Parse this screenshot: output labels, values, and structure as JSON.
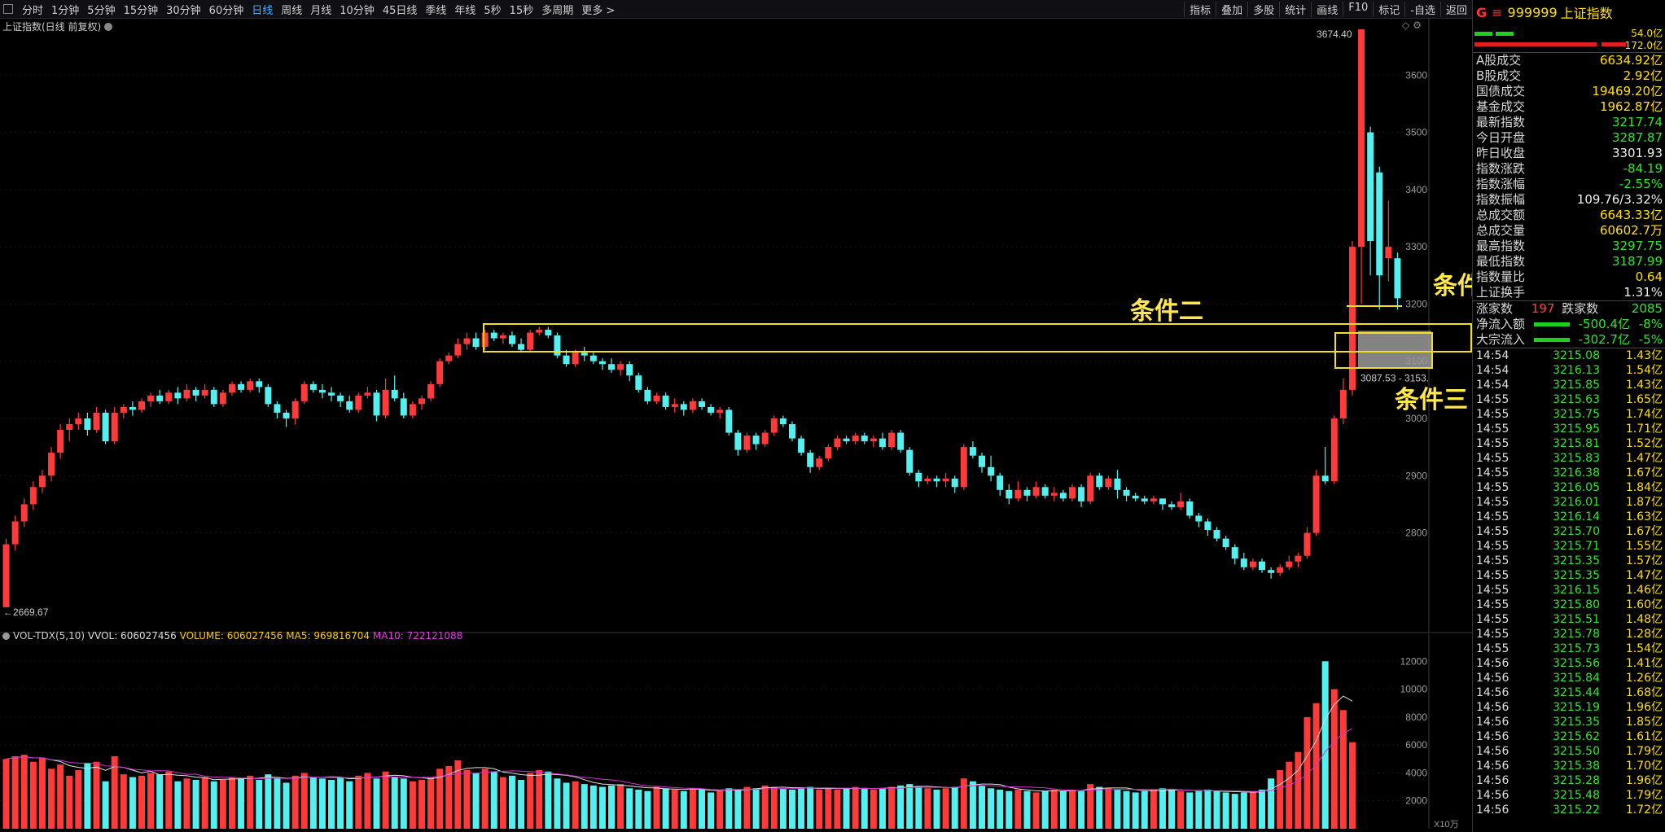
{
  "toolbar": {
    "periods": [
      "分时",
      "1分钟",
      "5分钟",
      "15分钟",
      "30分钟",
      "60分钟",
      "日线",
      "周线",
      "月线",
      "10分钟",
      "45日线",
      "季线",
      "年线",
      "5秒",
      "15秒",
      "多周期",
      "更多 >"
    ],
    "active": "日线",
    "right": [
      "指标",
      "叠加",
      "多股",
      "统计",
      "画线",
      "F10",
      "标记",
      "-自选",
      "返回"
    ]
  },
  "chart": {
    "title": "上证指数(日线 前复权)",
    "high_label": "3674.40",
    "low_label": "←2669.67",
    "range_label": "3087.53 - 3153.",
    "y_ticks": [
      3600,
      3500,
      3400,
      3300,
      3200,
      3100,
      3000,
      2900,
      2800
    ],
    "y_min": 2640,
    "y_max": 3700
  },
  "volume": {
    "indicator": "VOL-TDX(5,10)",
    "vvol": "VVOL: 606027456",
    "volume": "VOLUME: 606027456",
    "ma5": "MA5: 969816704",
    "ma10": "MA10: 722121088",
    "y_ticks": [
      12000,
      10000,
      8000,
      6000,
      4000,
      2000
    ],
    "unit_label": "X10万"
  },
  "annotations": {
    "cond2": "条件二",
    "cond3": "条件三",
    "cond_right": "条件"
  },
  "colors": {
    "up": "#ff3a3a",
    "down": "#54f0f0",
    "accent": "#f0e020",
    "ma5": "#e0e0e0",
    "ma10": "#d030d0"
  },
  "side": {
    "head": {
      "g": "G",
      "eq": "≡",
      "code": "999999",
      "name": "上证指数"
    },
    "mini": {
      "v1": "54.0亿",
      "v2": "172.0亿"
    },
    "rows": [
      {
        "label": "A股成交",
        "value": "6634.92亿",
        "color": "yellow"
      },
      {
        "label": "B股成交",
        "value": "2.92亿",
        "color": "yellow"
      },
      {
        "label": "国债成交",
        "value": "19469.20亿",
        "color": "yellow"
      },
      {
        "label": "基金成交",
        "value": "1962.87亿",
        "color": "yellow"
      },
      {
        "label": "最新指数",
        "value": "3217.74",
        "color": "green"
      },
      {
        "label": "今日开盘",
        "value": "3287.87",
        "color": "green"
      },
      {
        "label": "昨日收盘",
        "value": "3301.93",
        "color": "white"
      },
      {
        "label": "指数涨跌",
        "value": "-84.19",
        "color": "green"
      },
      {
        "label": "指数涨幅",
        "value": "-2.55%",
        "color": "green"
      },
      {
        "label": "指数振幅",
        "value": "109.76/3.32%",
        "color": "white"
      },
      {
        "label": "总成交额",
        "value": "6643.33亿",
        "color": "yellow"
      },
      {
        "label": "总成交量",
        "value": "60602.7万",
        "color": "yellow"
      },
      {
        "label": "最高指数",
        "value": "3297.75",
        "color": "green"
      },
      {
        "label": "最低指数",
        "value": "3187.99",
        "color": "green"
      },
      {
        "label": "指数量比",
        "value": "0.64",
        "color": "yellow"
      },
      {
        "label": "上证换手",
        "value": "1.31%",
        "color": "white"
      }
    ],
    "updown": {
      "up_label": "涨家数",
      "up": "197",
      "down_label": "跌家数",
      "down": "2085"
    },
    "flows": [
      {
        "label": "净流入额",
        "value": "-500.4亿",
        "pct": "-8%"
      },
      {
        "label": "大宗流入",
        "value": "-302.7亿",
        "pct": "-5%"
      }
    ],
    "ticks": [
      [
        "14:54",
        "3215.08",
        "1.43亿"
      ],
      [
        "14:54",
        "3216.13",
        "1.54亿"
      ],
      [
        "14:54",
        "3215.85",
        "1.43亿"
      ],
      [
        "14:55",
        "3215.63",
        "1.65亿"
      ],
      [
        "14:55",
        "3215.75",
        "1.74亿"
      ],
      [
        "14:55",
        "3215.95",
        "1.71亿"
      ],
      [
        "14:55",
        "3215.81",
        "1.52亿"
      ],
      [
        "14:55",
        "3215.83",
        "1.47亿"
      ],
      [
        "14:55",
        "3216.38",
        "1.67亿"
      ],
      [
        "14:55",
        "3216.05",
        "1.84亿"
      ],
      [
        "14:55",
        "3216.01",
        "1.87亿"
      ],
      [
        "14:55",
        "3216.14",
        "1.63亿"
      ],
      [
        "14:55",
        "3215.70",
        "1.67亿"
      ],
      [
        "14:55",
        "3215.71",
        "1.55亿"
      ],
      [
        "14:55",
        "3215.35",
        "1.57亿"
      ],
      [
        "14:55",
        "3215.35",
        "1.47亿"
      ],
      [
        "14:55",
        "3216.15",
        "1.46亿"
      ],
      [
        "14:55",
        "3215.80",
        "1.60亿"
      ],
      [
        "14:55",
        "3215.51",
        "1.48亿"
      ],
      [
        "14:55",
        "3215.78",
        "1.28亿"
      ],
      [
        "14:55",
        "3215.73",
        "1.54亿"
      ],
      [
        "14:56",
        "3215.56",
        "1.41亿"
      ],
      [
        "14:56",
        "3215.84",
        "1.26亿"
      ],
      [
        "14:56",
        "3215.44",
        "1.68亿"
      ],
      [
        "14:56",
        "3215.19",
        "1.96亿"
      ],
      [
        "14:56",
        "3215.35",
        "1.85亿"
      ],
      [
        "14:56",
        "3215.62",
        "1.61亿"
      ],
      [
        "14:56",
        "3215.50",
        "1.79亿"
      ],
      [
        "14:56",
        "3215.38",
        "1.70亿"
      ],
      [
        "14:56",
        "3215.28",
        "1.96亿"
      ],
      [
        "14:56",
        "3215.48",
        "1.79亿"
      ],
      [
        "14:56",
        "3215.22",
        "1.72亿"
      ]
    ]
  },
  "chart_data": {
    "type": "candlestick",
    "title": "上证指数(日线 前复权)",
    "ylim": [
      2640,
      3700
    ],
    "candles": [
      [
        2670,
        2780,
        2669.67,
        2790
      ],
      [
        2780,
        2820,
        2770,
        2830
      ],
      [
        2820,
        2850,
        2810,
        2860
      ],
      [
        2850,
        2880,
        2840,
        2890
      ],
      [
        2880,
        2900,
        2870,
        2910
      ],
      [
        2900,
        2940,
        2890,
        2950
      ],
      [
        2940,
        2980,
        2930,
        2990
      ],
      [
        2980,
        2990,
        2960,
        3000
      ],
      [
        2990,
        3000,
        2980,
        3010
      ],
      [
        3000,
        2980,
        2970,
        3010
      ],
      [
        2980,
        3010,
        2975,
        3020
      ],
      [
        3010,
        2960,
        2955,
        3015
      ],
      [
        2960,
        3010,
        2955,
        3020
      ],
      [
        3010,
        3020,
        3000,
        3025
      ],
      [
        3020,
        3015,
        3005,
        3030
      ],
      [
        3015,
        3030,
        3010,
        3035
      ],
      [
        3030,
        3040,
        3020,
        3045
      ],
      [
        3040,
        3030,
        3025,
        3050
      ],
      [
        3030,
        3045,
        3025,
        3050
      ],
      [
        3045,
        3035,
        3025,
        3055
      ],
      [
        3035,
        3050,
        3030,
        3060
      ],
      [
        3050,
        3040,
        3030,
        3055
      ],
      [
        3040,
        3050,
        3035,
        3060
      ],
      [
        3050,
        3025,
        3020,
        3055
      ],
      [
        3025,
        3045,
        3020,
        3050
      ],
      [
        3045,
        3060,
        3040,
        3065
      ],
      [
        3060,
        3050,
        3045,
        3065
      ],
      [
        3050,
        3065,
        3045,
        3070
      ],
      [
        3065,
        3055,
        3045,
        3070
      ],
      [
        3055,
        3025,
        3020,
        3060
      ],
      [
        3025,
        3010,
        3000,
        3030
      ],
      [
        3010,
        3000,
        2985,
        3015
      ],
      [
        3000,
        3030,
        2990,
        3035
      ],
      [
        3030,
        3060,
        3025,
        3065
      ],
      [
        3060,
        3050,
        3045,
        3065
      ],
      [
        3050,
        3045,
        3035,
        3060
      ],
      [
        3045,
        3040,
        3030,
        3055
      ],
      [
        3040,
        3030,
        3020,
        3045
      ],
      [
        3030,
        3015,
        3010,
        3040
      ],
      [
        3015,
        3040,
        3010,
        3045
      ],
      [
        3040,
        3045,
        3035,
        3055
      ],
      [
        3045,
        3005,
        2995,
        3050
      ],
      [
        3005,
        3050,
        3000,
        3070
      ],
      [
        3050,
        3035,
        3030,
        3075
      ],
      [
        3035,
        3005,
        3000,
        3045
      ],
      [
        3005,
        3025,
        3000,
        3030
      ],
      [
        3025,
        3035,
        3015,
        3040
      ],
      [
        3035,
        3060,
        3030,
        3065
      ],
      [
        3060,
        3100,
        3055,
        3105
      ],
      [
        3100,
        3110,
        3095,
        3115
      ],
      [
        3110,
        3130,
        3105,
        3140
      ],
      [
        3130,
        3140,
        3120,
        3150
      ],
      [
        3140,
        3125,
        3120,
        3150
      ],
      [
        3125,
        3150,
        3120,
        3155
      ],
      [
        3150,
        3140,
        3135,
        3155
      ],
      [
        3140,
        3145,
        3130,
        3150
      ],
      [
        3145,
        3130,
        3125,
        3152
      ],
      [
        3130,
        3120,
        3115,
        3140
      ],
      [
        3120,
        3150,
        3115,
        3155
      ],
      [
        3150,
        3155,
        3145,
        3160
      ],
      [
        3155,
        3145,
        3140,
        3160
      ],
      [
        3145,
        3110,
        3105,
        3150
      ],
      [
        3110,
        3095,
        3090,
        3120
      ],
      [
        3095,
        3115,
        3090,
        3120
      ],
      [
        3115,
        3110,
        3100,
        3125
      ],
      [
        3110,
        3100,
        3095,
        3115
      ],
      [
        3100,
        3095,
        3085,
        3105
      ],
      [
        3095,
        3085,
        3080,
        3105
      ],
      [
        3085,
        3095,
        3075,
        3100
      ],
      [
        3095,
        3075,
        3065,
        3100
      ],
      [
        3075,
        3050,
        3045,
        3080
      ],
      [
        3050,
        3030,
        3025,
        3055
      ],
      [
        3030,
        3040,
        3025,
        3045
      ],
      [
        3040,
        3020,
        3015,
        3045
      ],
      [
        3020,
        3025,
        3010,
        3035
      ],
      [
        3025,
        3015,
        3005,
        3030
      ],
      [
        3015,
        3030,
        3010,
        3035
      ],
      [
        3030,
        3020,
        3015,
        3035
      ],
      [
        3020,
        3010,
        3005,
        3025
      ],
      [
        3010,
        3015,
        3000,
        3020
      ],
      [
        3015,
        2975,
        2970,
        3020
      ],
      [
        2975,
        2945,
        2935,
        2980
      ],
      [
        2945,
        2970,
        2940,
        2975
      ],
      [
        2970,
        2955,
        2945,
        2975
      ],
      [
        2955,
        2975,
        2950,
        2980
      ],
      [
        2975,
        3000,
        2970,
        3005
      ],
      [
        3000,
        2990,
        2985,
        3005
      ],
      [
        2990,
        2965,
        2960,
        2995
      ],
      [
        2965,
        2940,
        2935,
        2970
      ],
      [
        2940,
        2915,
        2905,
        2945
      ],
      [
        2915,
        2930,
        2910,
        2935
      ],
      [
        2930,
        2950,
        2925,
        2955
      ],
      [
        2950,
        2965,
        2945,
        2970
      ],
      [
        2965,
        2960,
        2955,
        2970
      ],
      [
        2960,
        2970,
        2955,
        2975
      ],
      [
        2970,
        2960,
        2955,
        2975
      ],
      [
        2960,
        2965,
        2950,
        2970
      ],
      [
        2965,
        2950,
        2945,
        2975
      ],
      [
        2950,
        2975,
        2945,
        2980
      ],
      [
        2975,
        2945,
        2940,
        2980
      ],
      [
        2945,
        2905,
        2900,
        2950
      ],
      [
        2905,
        2890,
        2880,
        2910
      ],
      [
        2890,
        2895,
        2885,
        2900
      ],
      [
        2895,
        2890,
        2880,
        2900
      ],
      [
        2890,
        2895,
        2880,
        2905
      ],
      [
        2895,
        2880,
        2870,
        2900
      ],
      [
        2880,
        2950,
        2875,
        2955
      ],
      [
        2950,
        2935,
        2930,
        2960
      ],
      [
        2935,
        2915,
        2905,
        2940
      ],
      [
        2915,
        2900,
        2890,
        2935
      ],
      [
        2900,
        2875,
        2865,
        2905
      ],
      [
        2875,
        2860,
        2850,
        2885
      ],
      [
        2860,
        2875,
        2855,
        2890
      ],
      [
        2875,
        2865,
        2855,
        2880
      ],
      [
        2865,
        2880,
        2860,
        2890
      ],
      [
        2880,
        2865,
        2860,
        2885
      ],
      [
        2865,
        2870,
        2855,
        2880
      ],
      [
        2870,
        2860,
        2855,
        2875
      ],
      [
        2860,
        2880,
        2855,
        2885
      ],
      [
        2880,
        2855,
        2845,
        2885
      ],
      [
        2855,
        2900,
        2850,
        2905
      ],
      [
        2900,
        2880,
        2875,
        2905
      ],
      [
        2880,
        2895,
        2875,
        2900
      ],
      [
        2895,
        2875,
        2860,
        2910
      ],
      [
        2875,
        2865,
        2855,
        2880
      ],
      [
        2865,
        2860,
        2855,
        2870
      ],
      [
        2860,
        2855,
        2850,
        2865
      ],
      [
        2855,
        2860,
        2850,
        2865
      ],
      [
        2860,
        2850,
        2840,
        2860
      ],
      [
        2850,
        2845,
        2840,
        2855
      ],
      [
        2845,
        2855,
        2840,
        2870
      ],
      [
        2855,
        2830,
        2825,
        2860
      ],
      [
        2830,
        2820,
        2810,
        2835
      ],
      [
        2820,
        2805,
        2795,
        2825
      ],
      [
        2805,
        2790,
        2785,
        2810
      ],
      [
        2790,
        2775,
        2770,
        2795
      ],
      [
        2775,
        2755,
        2745,
        2780
      ],
      [
        2755,
        2740,
        2735,
        2765
      ],
      [
        2740,
        2750,
        2735,
        2755
      ],
      [
        2750,
        2735,
        2730,
        2755
      ],
      [
        2735,
        2730,
        2720,
        2740
      ],
      [
        2730,
        2740,
        2725,
        2745
      ],
      [
        2740,
        2750,
        2735,
        2760
      ],
      [
        2750,
        2760,
        2740,
        2765
      ],
      [
        2760,
        2800,
        2755,
        2810
      ],
      [
        2800,
        2900,
        2795,
        2910
      ],
      [
        2900,
        2890,
        2885,
        2950
      ],
      [
        2890,
        3000,
        2885,
        3005
      ],
      [
        3000,
        3050,
        2990,
        3070
      ],
      [
        3050,
        3300,
        3040,
        3310
      ],
      [
        3300,
        3680,
        3200,
        3674.4
      ],
      [
        3500,
        3310,
        3250,
        3510
      ],
      [
        3430,
        3250,
        3190,
        3440
      ],
      [
        3280,
        3300,
        3240,
        3380
      ],
      [
        3280,
        3210,
        3190,
        3290
      ]
    ],
    "volume": [
      5000,
      5200,
      5300,
      4800,
      5100,
      4300,
      4600,
      3800,
      4200,
      4700,
      4800,
      3400,
      5200,
      3900,
      3700,
      3800,
      4000,
      3900,
      4100,
      3400,
      3600,
      3500,
      3700,
      3400,
      3500,
      3700,
      3600,
      3800,
      3500,
      3900,
      3600,
      3300,
      3800,
      4000,
      3700,
      3600,
      3500,
      3700,
      3400,
      3800,
      4000,
      3600,
      4100,
      3700,
      3600,
      3400,
      3500,
      3700,
      4300,
      4500,
      4900,
      4200,
      4000,
      4300,
      4100,
      3700,
      3800,
      3500,
      4000,
      4200,
      4100,
      3600,
      3300,
      3400,
      3200,
      3100,
      3000,
      3100,
      3200,
      2900,
      2800,
      2700,
      3000,
      2900,
      2800,
      2700,
      2900,
      2800,
      2600,
      2700,
      2900,
      2800,
      3000,
      2900,
      3100,
      3000,
      2900,
      2800,
      2900,
      3000,
      2800,
      2900,
      2800,
      2900,
      3000,
      2900,
      2800,
      2900,
      3000,
      3100,
      3200,
      3000,
      2900,
      2800,
      2900,
      3000,
      3600,
      3400,
      3100,
      2900,
      2800,
      2700,
      2800,
      2700,
      2600,
      2700,
      2800,
      2700,
      2800,
      2700,
      3200,
      3000,
      2900,
      2800,
      2700,
      2600,
      2700,
      2800,
      2900,
      2800,
      2700,
      2600,
      2700,
      2800,
      2700,
      2600,
      2500,
      2600,
      2700,
      2800,
      3600,
      4200,
      4800,
      5500,
      8000,
      9000,
      12000,
      10000,
      8500,
      6200
    ]
  }
}
